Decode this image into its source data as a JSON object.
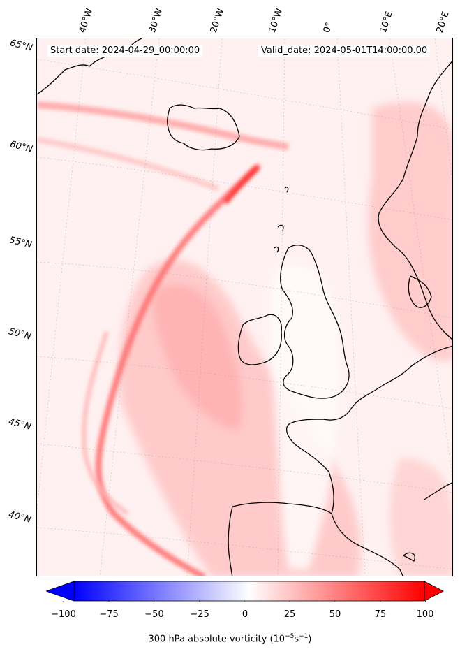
{
  "header": {
    "start_date": "Start date: 2024-04-29_00:00:00",
    "valid_date": "Valid_date: 2024-05-01T14:00:00.00"
  },
  "longitude_labels": [
    "40°W",
    "30°W",
    "20°W",
    "10°W",
    "0°",
    "10°E",
    "20°E"
  ],
  "latitude_labels": [
    "65°N",
    "60°N",
    "55°N",
    "50°N",
    "45°N",
    "40°N"
  ],
  "colorbar": {
    "ticks": [
      "−100",
      "−75",
      "−50",
      "−25",
      "0",
      "25",
      "50",
      "75",
      "100"
    ],
    "title_prefix": "300 hPa absolute vorticity (10",
    "title_exp1": "−5",
    "title_mid": "s",
    "title_exp2": "−1",
    "title_suffix": ")",
    "range": [
      -100,
      100
    ],
    "low_color": "#0000ff",
    "mid_color": "#ffffff",
    "high_color": "#ff0000",
    "extend": "both"
  },
  "map": {
    "projection": "polar-stereographic",
    "coastlines": true,
    "gridlines": "dotted",
    "field": "300 hPa absolute vorticity"
  }
}
